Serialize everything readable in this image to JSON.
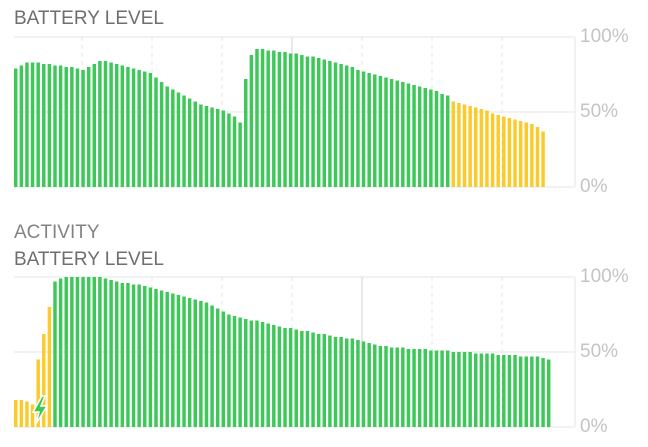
{
  "section_heading": "ACTIVITY",
  "chart_data": [
    {
      "type": "bar",
      "title": "BATTERY LEVEL",
      "ylim": [
        0,
        100
      ],
      "yticks": [
        {
          "value": 0,
          "label": "0%"
        },
        {
          "value": 50,
          "label": "50%"
        },
        {
          "value": 100,
          "label": "100%"
        }
      ],
      "grid": true,
      "series": [
        {
          "color": "#3ec85a",
          "values": [
            79,
            81,
            83,
            83,
            83,
            82,
            82,
            81,
            81,
            80,
            80,
            79,
            78,
            80,
            82,
            84,
            84,
            83,
            82,
            81,
            80,
            79,
            78,
            77,
            76,
            73,
            70,
            67,
            65,
            63,
            61,
            59,
            57,
            55,
            54,
            53,
            52,
            51,
            49,
            47,
            43,
            72,
            88,
            92,
            92,
            91,
            91,
            90,
            90,
            89,
            89,
            88,
            87,
            87,
            86,
            85,
            84,
            83,
            82,
            81,
            80,
            78,
            77,
            76,
            75,
            74,
            73,
            72,
            71,
            70,
            69,
            68,
            67,
            66,
            65,
            64,
            62,
            61,
            null,
            null,
            null,
            null,
            null,
            null,
            null,
            null,
            null,
            null,
            null,
            null,
            null,
            null,
            null,
            null,
            null,
            null,
            null,
            null,
            null,
            null
          ]
        },
        {
          "color": "#fbcb2b",
          "values": [
            null,
            null,
            null,
            null,
            null,
            null,
            null,
            null,
            null,
            null,
            null,
            null,
            null,
            null,
            null,
            null,
            null,
            null,
            null,
            null,
            null,
            null,
            null,
            null,
            null,
            null,
            null,
            null,
            null,
            null,
            null,
            null,
            null,
            null,
            null,
            null,
            null,
            null,
            null,
            null,
            null,
            null,
            null,
            null,
            null,
            null,
            null,
            null,
            null,
            null,
            null,
            null,
            null,
            null,
            null,
            null,
            null,
            null,
            null,
            null,
            null,
            null,
            null,
            null,
            null,
            null,
            null,
            null,
            null,
            null,
            null,
            null,
            null,
            null,
            null,
            null,
            null,
            null,
            57,
            56,
            55,
            54,
            53,
            52,
            51,
            49,
            48,
            47,
            46,
            45,
            44,
            43,
            42,
            40,
            37,
            null,
            null,
            null,
            null,
            null
          ]
        }
      ]
    },
    {
      "type": "bar",
      "title": "BATTERY LEVEL",
      "ylim": [
        0,
        100
      ],
      "yticks": [
        {
          "value": 0,
          "label": "0%"
        },
        {
          "value": 50,
          "label": "50%"
        },
        {
          "value": 100,
          "label": "100%"
        }
      ],
      "grid": true,
      "series": [
        {
          "color": "#3ec85a",
          "values": [
            null,
            null,
            null,
            null,
            null,
            null,
            null,
            97,
            99,
            100,
            100,
            100,
            100,
            100,
            100,
            100,
            99,
            98,
            97,
            96,
            96,
            95,
            95,
            94,
            93,
            92,
            91,
            90,
            89,
            88,
            87,
            86,
            85,
            84,
            83,
            81,
            79,
            77,
            75,
            74,
            73,
            72,
            71,
            71,
            70,
            69,
            68,
            67,
            66,
            66,
            65,
            64,
            64,
            63,
            62,
            62,
            61,
            60,
            60,
            59,
            59,
            58,
            57,
            56,
            55,
            54,
            54,
            53,
            53,
            53,
            52,
            52,
            52,
            52,
            51,
            51,
            51,
            51,
            50,
            50,
            50,
            50,
            49,
            49,
            49,
            49,
            48,
            48,
            48,
            48,
            47,
            47,
            47,
            47,
            46,
            45,
            null,
            null,
            null,
            null
          ]
        },
        {
          "color": "#fbcb2b",
          "values": [
            18,
            18,
            17,
            15,
            45,
            62,
            80,
            null,
            null,
            null,
            null,
            null,
            null,
            null,
            null,
            null,
            null,
            null,
            null,
            null,
            null,
            null,
            null,
            null,
            null,
            null,
            null,
            null,
            null,
            null,
            null,
            null,
            null,
            null,
            null,
            null,
            null,
            null,
            null,
            null,
            null,
            null,
            null,
            null,
            null,
            null,
            null,
            null,
            null,
            null,
            null,
            null,
            null,
            null,
            null,
            null,
            null,
            null,
            null,
            null,
            null,
            null,
            null,
            null,
            null,
            null,
            null,
            null,
            null,
            null,
            null,
            null,
            null,
            null,
            null,
            null,
            null,
            null,
            null,
            null,
            null,
            null,
            null,
            null,
            null,
            null,
            null,
            null,
            null,
            null,
            null,
            null,
            null,
            null,
            null,
            null,
            null,
            null,
            null,
            null
          ]
        }
      ]
    }
  ]
}
